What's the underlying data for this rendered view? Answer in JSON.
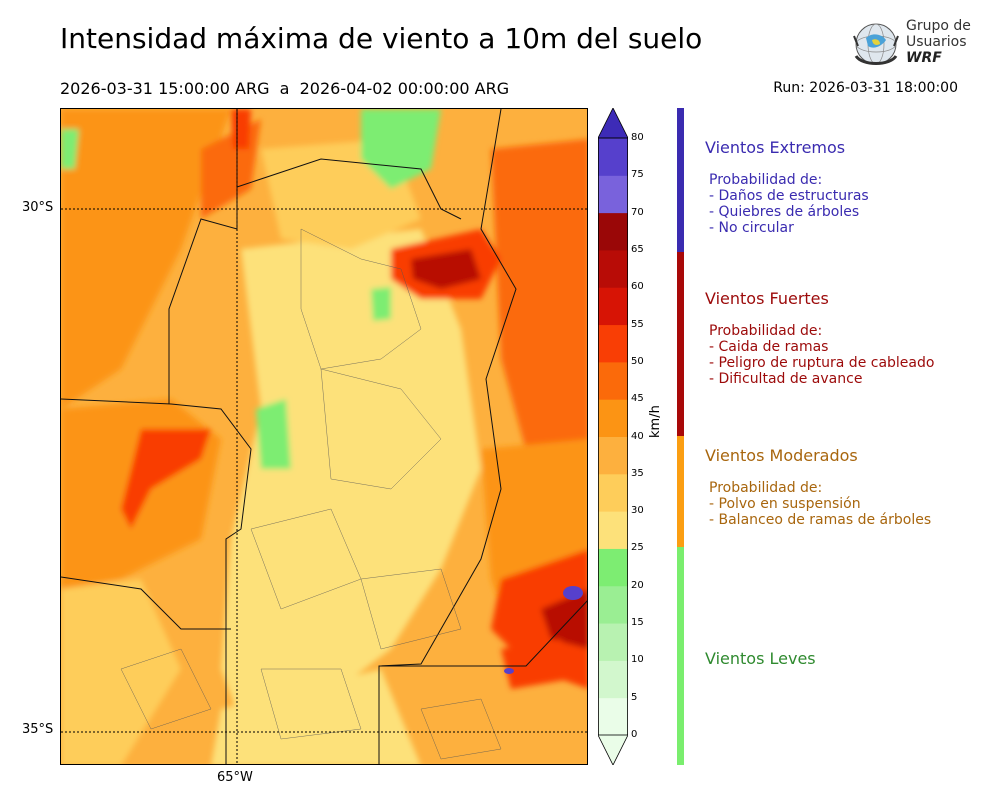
{
  "header": {
    "title": "Intensidad máxima de viento a 10m del suelo",
    "period": "2026-03-31 15:00:00 ARG  a  2026-04-02 00:00:00 ARG",
    "run": "Run: 2026-03-31 18:00:00"
  },
  "logo": {
    "line1": "Grupo de",
    "line2": "Usuarios",
    "line3": "WRF"
  },
  "map": {
    "lat_labels": [
      "30°S",
      "35°S"
    ],
    "lon_labels": [
      "65°W"
    ]
  },
  "colorbar": {
    "unit": "km/h",
    "ticks": [
      "0",
      "5",
      "10",
      "15",
      "20",
      "25",
      "30",
      "35",
      "40",
      "45",
      "50",
      "55",
      "60",
      "65",
      "70",
      "75",
      "80"
    ],
    "colors": [
      "#eafde8",
      "#d2f7cd",
      "#b8f2b1",
      "#9aee93",
      "#7ded72",
      "#fde17a",
      "#fecd5a",
      "#fdb03e",
      "#fc9414",
      "#fb6a0a",
      "#f93e05",
      "#d71405",
      "#b80c06",
      "#9a0707",
      "#7962dc",
      "#5640cc",
      "#3d2bb7"
    ]
  },
  "categories": [
    {
      "title": "Vientos Extremos",
      "color": "#3a2bb0",
      "lines": [
        "Probabilidad de:",
        "- Daños de estructuras",
        "- Quiebres de árboles",
        "- No circular"
      ]
    },
    {
      "title": "Vientos Fuertes",
      "color": "#9c0a0a",
      "lines": [
        "Probabilidad de:",
        "- Caida de ramas",
        "- Peligro de ruptura de cableado",
        "- Dificultad de avance"
      ]
    },
    {
      "title": "Vientos Moderados",
      "color": "#a8660e",
      "lines": [
        "Probabilidad de:",
        "- Polvo en suspensión",
        "- Balanceo de ramas de árboles"
      ]
    },
    {
      "title": "Vientos Leves",
      "color": "#2f8a2f",
      "lines": []
    }
  ],
  "legend_bar_colors": [
    "#3a2bb0",
    "#a80808",
    "#fb9e12",
    "#7aee6e"
  ]
}
